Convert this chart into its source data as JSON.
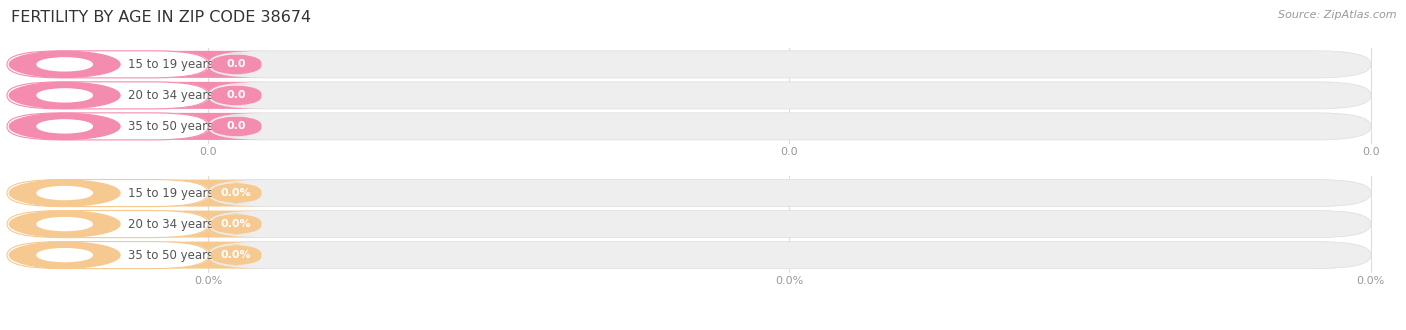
{
  "title": "FERTILITY BY AGE IN ZIP CODE 38674",
  "source": "Source: ZipAtlas.com",
  "categories": [
    "15 to 19 years",
    "20 to 34 years",
    "35 to 50 years"
  ],
  "top_labels": [
    "0.0",
    "0.0",
    "0.0"
  ],
  "bottom_labels": [
    "0.0%",
    "0.0%",
    "0.0%"
  ],
  "top_bar_color": "#f48cb0",
  "top_circle_color": "#f06090",
  "top_label_bg": "#ffffff",
  "top_label_border": "#f5c0d0",
  "bottom_bar_color": "#f5c990",
  "bottom_circle_color": "#f0a050",
  "bottom_label_bg": "#ffffff",
  "bottom_label_border": "#f5ddb0",
  "track_color": "#eeeeee",
  "track_border": "#e0e0e0",
  "background_color": "#ffffff",
  "grid_color": "#dddddd",
  "axis_label_color": "#999999",
  "title_color": "#333333",
  "source_color": "#999999",
  "cat_text_color": "#555555",
  "val_text_color": "#ffffff",
  "title_fontsize": 11.5,
  "source_fontsize": 8,
  "cat_fontsize": 8.5,
  "val_fontsize": 8,
  "axis_fontsize": 8
}
